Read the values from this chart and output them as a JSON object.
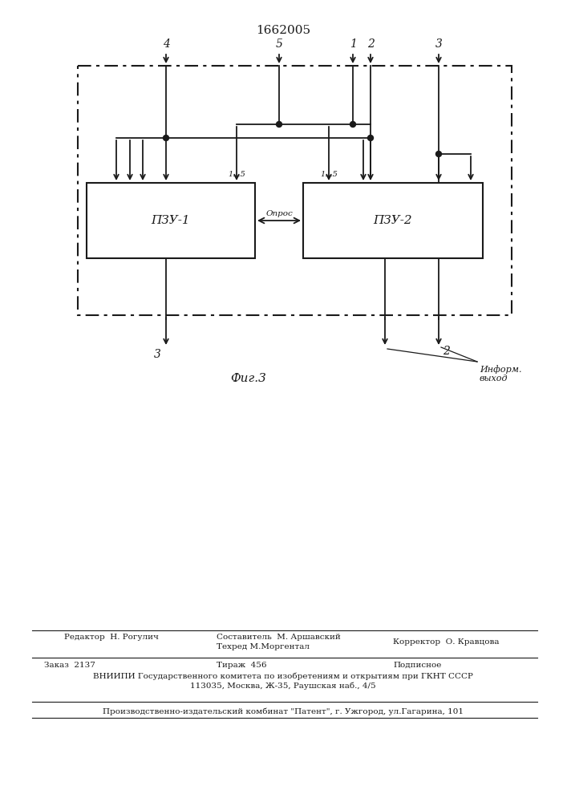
{
  "title": "1662005",
  "fig_label": "Фиг.3",
  "pzu1_label": "ПЗУ-1",
  "pzu2_label": "ПЗУ-2",
  "opros_label": "Опрос",
  "inform_label": "Информ.\nвыход",
  "labels_1_5": "1...5",
  "bg_color": "#ffffff",
  "line_color": "#1a1a1a",
  "footer_line1_left": "Редактор  Н. Рогулич",
  "footer_line1_mid1": "Составитель  М. Аршавский",
  "footer_line1_mid2": "Техред М.Моргентал",
  "footer_line1_right": "Корректор  О. Кравцова",
  "footer_line2_a": "Заказ  2137",
  "footer_line2_b": "Тираж  456",
  "footer_line2_c": "Подписное",
  "footer_line3": "ВНИИПИ Государственного комитета по изобретениям и открытиям при ГКНТ СССР",
  "footer_line4": "113035, Москва, Ж-35, Раушская наб., 4/5",
  "footer_line5": "Производственно-издательский комбинат \"Патент\", г. Ужгород, ул.Гагарина, 101"
}
